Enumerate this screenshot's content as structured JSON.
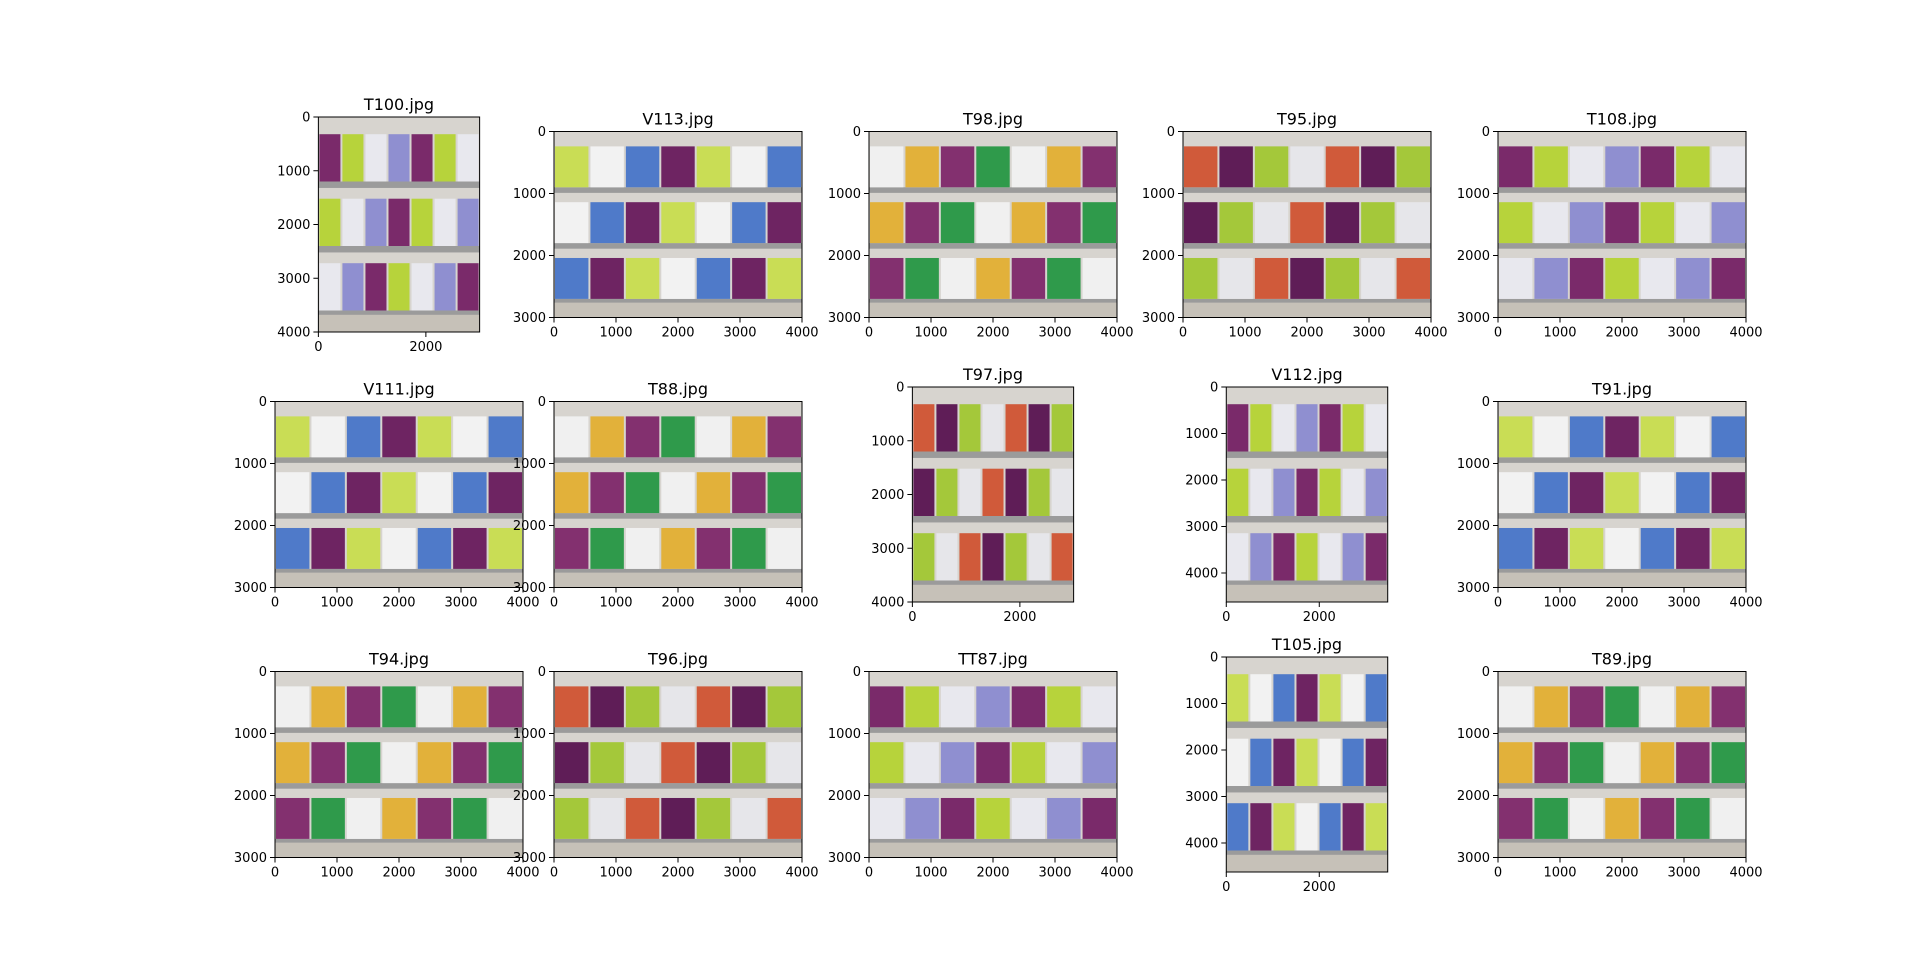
{
  "chart_data": [
    {
      "type": "image",
      "title": "T100.jpg",
      "width": 3000,
      "height": 4000,
      "xticks": [
        0,
        2000
      ],
      "yticks": [
        0,
        1000,
        2000,
        3000,
        4000
      ]
    },
    {
      "type": "image",
      "title": "V113.jpg",
      "width": 4000,
      "height": 3000,
      "xticks": [
        0,
        1000,
        2000,
        3000,
        4000
      ],
      "yticks": [
        0,
        1000,
        2000,
        3000
      ]
    },
    {
      "type": "image",
      "title": "T98.jpg",
      "width": 4000,
      "height": 3000,
      "xticks": [
        0,
        1000,
        2000,
        3000,
        4000
      ],
      "yticks": [
        0,
        1000,
        2000,
        3000
      ]
    },
    {
      "type": "image",
      "title": "T95.jpg",
      "width": 4000,
      "height": 3000,
      "xticks": [
        0,
        1000,
        2000,
        3000,
        4000
      ],
      "yticks": [
        0,
        1000,
        2000,
        3000
      ]
    },
    {
      "type": "image",
      "title": "T108.jpg",
      "width": 4000,
      "height": 3000,
      "xticks": [
        0,
        1000,
        2000,
        3000,
        4000
      ],
      "yticks": [
        0,
        1000,
        2000,
        3000
      ]
    },
    {
      "type": "image",
      "title": "V111.jpg",
      "width": 4000,
      "height": 3000,
      "xticks": [
        0,
        1000,
        2000,
        3000,
        4000
      ],
      "yticks": [
        0,
        1000,
        2000,
        3000
      ]
    },
    {
      "type": "image",
      "title": "T88.jpg",
      "width": 4000,
      "height": 3000,
      "xticks": [
        0,
        1000,
        2000,
        3000,
        4000
      ],
      "yticks": [
        0,
        1000,
        2000,
        3000
      ]
    },
    {
      "type": "image",
      "title": "T97.jpg",
      "width": 3000,
      "height": 4000,
      "xticks": [
        0,
        2000
      ],
      "yticks": [
        0,
        1000,
        2000,
        3000,
        4000
      ]
    },
    {
      "type": "image",
      "title": "V112.jpg",
      "width": 3472,
      "height": 4624,
      "xticks": [
        0,
        2000
      ],
      "yticks": [
        0,
        1000,
        2000,
        3000,
        4000
      ]
    },
    {
      "type": "image",
      "title": "T91.jpg",
      "width": 4000,
      "height": 3000,
      "xticks": [
        0,
        1000,
        2000,
        3000,
        4000
      ],
      "yticks": [
        0,
        1000,
        2000,
        3000
      ]
    },
    {
      "type": "image",
      "title": "T94.jpg",
      "width": 4000,
      "height": 3000,
      "xticks": [
        0,
        1000,
        2000,
        3000,
        4000
      ],
      "yticks": [
        0,
        1000,
        2000,
        3000
      ]
    },
    {
      "type": "image",
      "title": "T96.jpg",
      "width": 4000,
      "height": 3000,
      "xticks": [
        0,
        1000,
        2000,
        3000,
        4000
      ],
      "yticks": [
        0,
        1000,
        2000,
        3000
      ]
    },
    {
      "type": "image",
      "title": "TT87.jpg",
      "width": 4000,
      "height": 3000,
      "xticks": [
        0,
        1000,
        2000,
        3000,
        4000
      ],
      "yticks": [
        0,
        1000,
        2000,
        3000
      ]
    },
    {
      "type": "image",
      "title": "T105.jpg",
      "width": 3472,
      "height": 4624,
      "xticks": [
        0,
        2000
      ],
      "yticks": [
        0,
        1000,
        2000,
        3000,
        4000
      ]
    },
    {
      "type": "image",
      "title": "T89.jpg",
      "width": 4000,
      "height": 3000,
      "xticks": [
        0,
        1000,
        2000,
        3000,
        4000
      ],
      "yticks": [
        0,
        1000,
        2000,
        3000
      ]
    }
  ]
}
